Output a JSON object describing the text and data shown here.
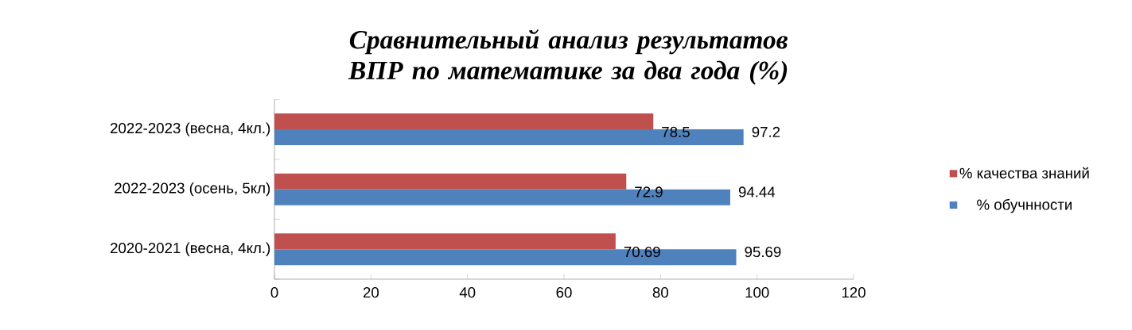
{
  "chart_data": {
    "type": "bar",
    "orientation": "horizontal",
    "title": "Сравнительный анализ результатов ВПР по математике за  два года (%)",
    "categories": [
      "2022-2023 (весна, 4кл.)",
      "2022-2023 (осень, 5кл)",
      "2020-2021 (весна, 4кл.)"
    ],
    "series": [
      {
        "name": "% качества знаний",
        "color": "#c0504d",
        "values": [
          78.5,
          72.9,
          70.69
        ]
      },
      {
        "name": "% обучнности",
        "color": "#4f81bd",
        "values": [
          97.2,
          94.44,
          95.69
        ]
      }
    ],
    "xlim": [
      0,
      120
    ],
    "xticks": [
      0,
      20,
      40,
      60,
      80,
      100,
      120
    ],
    "data_labels": true,
    "legend": "right"
  }
}
